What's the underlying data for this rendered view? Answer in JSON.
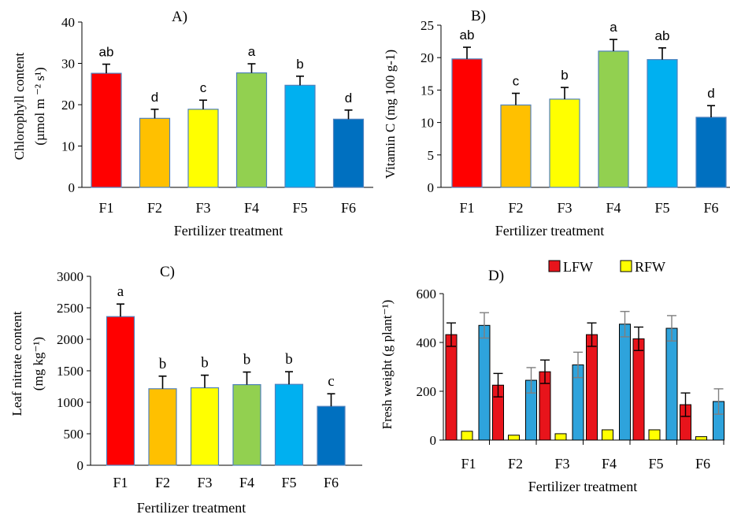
{
  "colors": {
    "F1": "#ff0000",
    "F2": "#ffc000",
    "F3": "#ffff00",
    "F4": "#92d050",
    "F5": "#00b0f0",
    "F6": "#0070c0",
    "LFW": "#e8141b",
    "RFW": "#ffff00",
    "third": "#2ea3dc",
    "bar_edge": "#4f81bd",
    "error": "#000000",
    "error_grey": "#7f7f7f"
  },
  "chart_data": [
    {
      "id": "A",
      "type": "bar",
      "title": "A)",
      "xlabel": "Fertilizer treatment",
      "ylabel_line1": "Chlorophyll content",
      "ylabel_line2": "(µmol m ⁻² s¹)",
      "ylim": [
        0,
        40
      ],
      "yticks": [
        0,
        10,
        20,
        30,
        40
      ],
      "categories": [
        "F1",
        "F2",
        "F3",
        "F4",
        "F5",
        "F6"
      ],
      "values": [
        27.6,
        16.7,
        18.9,
        27.7,
        24.7,
        16.5
      ],
      "errors": [
        2.2,
        2.2,
        2.2,
        2.2,
        2.2,
        2.2
      ],
      "letters": [
        "ab",
        "d",
        "c",
        "a",
        "b",
        "d"
      ]
    },
    {
      "id": "B",
      "type": "bar",
      "title": "B)",
      "xlabel": "Fertilizer treatment",
      "ylabel": "Vitamin C (mg 100 g-1)",
      "ylim": [
        0,
        25
      ],
      "yticks": [
        0,
        5,
        10,
        15,
        20,
        25
      ],
      "categories": [
        "F1",
        "F2",
        "F3",
        "F4",
        "F5",
        "F6"
      ],
      "values": [
        19.8,
        12.7,
        13.6,
        21.0,
        19.7,
        10.8
      ],
      "errors": [
        1.8,
        1.8,
        1.8,
        1.8,
        1.8,
        1.8
      ],
      "letters": [
        "ab",
        "c",
        "b",
        "a",
        "ab",
        "d"
      ]
    },
    {
      "id": "C",
      "type": "bar",
      "title": "C)",
      "xlabel": "Fertilizer treatment",
      "ylabel_line1": "Leaf nitrate content",
      "ylabel_line2": "(mg kg⁻¹)",
      "ylim": [
        0,
        3000
      ],
      "yticks": [
        0,
        500,
        1000,
        1500,
        2000,
        2500,
        3000
      ],
      "categories": [
        "F1",
        "F2",
        "F3",
        "F4",
        "F5",
        "F6"
      ],
      "values": [
        2360,
        1215,
        1230,
        1280,
        1285,
        935
      ],
      "errors": [
        200,
        200,
        200,
        200,
        200,
        200
      ],
      "letters": [
        "a",
        "b",
        "b",
        "b",
        "b",
        "c"
      ]
    },
    {
      "id": "D",
      "type": "bar",
      "title": "D)",
      "xlabel": "Fertilizer treatment",
      "ylabel": "Fresh weight (g plant⁻¹)",
      "ylim": [
        0,
        600
      ],
      "yticks": [
        0,
        200,
        400,
        600
      ],
      "categories": [
        "F1",
        "F2",
        "F3",
        "F4",
        "F5",
        "F6"
      ],
      "legend": [
        "LFW",
        "RFW"
      ],
      "series": [
        {
          "name": "LFW",
          "values": [
            432,
            225,
            280,
            432,
            415,
            145
          ],
          "errors": [
            48,
            48,
            48,
            48,
            48,
            48
          ]
        },
        {
          "name": "RFW",
          "values": [
            36,
            20,
            26,
            42,
            42,
            14
          ],
          "errors": [
            0,
            0,
            0,
            0,
            0,
            0
          ]
        },
        {
          "values": [
            470,
            245,
            308,
            475,
            458,
            158
          ],
          "errors": [
            52,
            52,
            52,
            52,
            52,
            52
          ]
        }
      ]
    }
  ]
}
